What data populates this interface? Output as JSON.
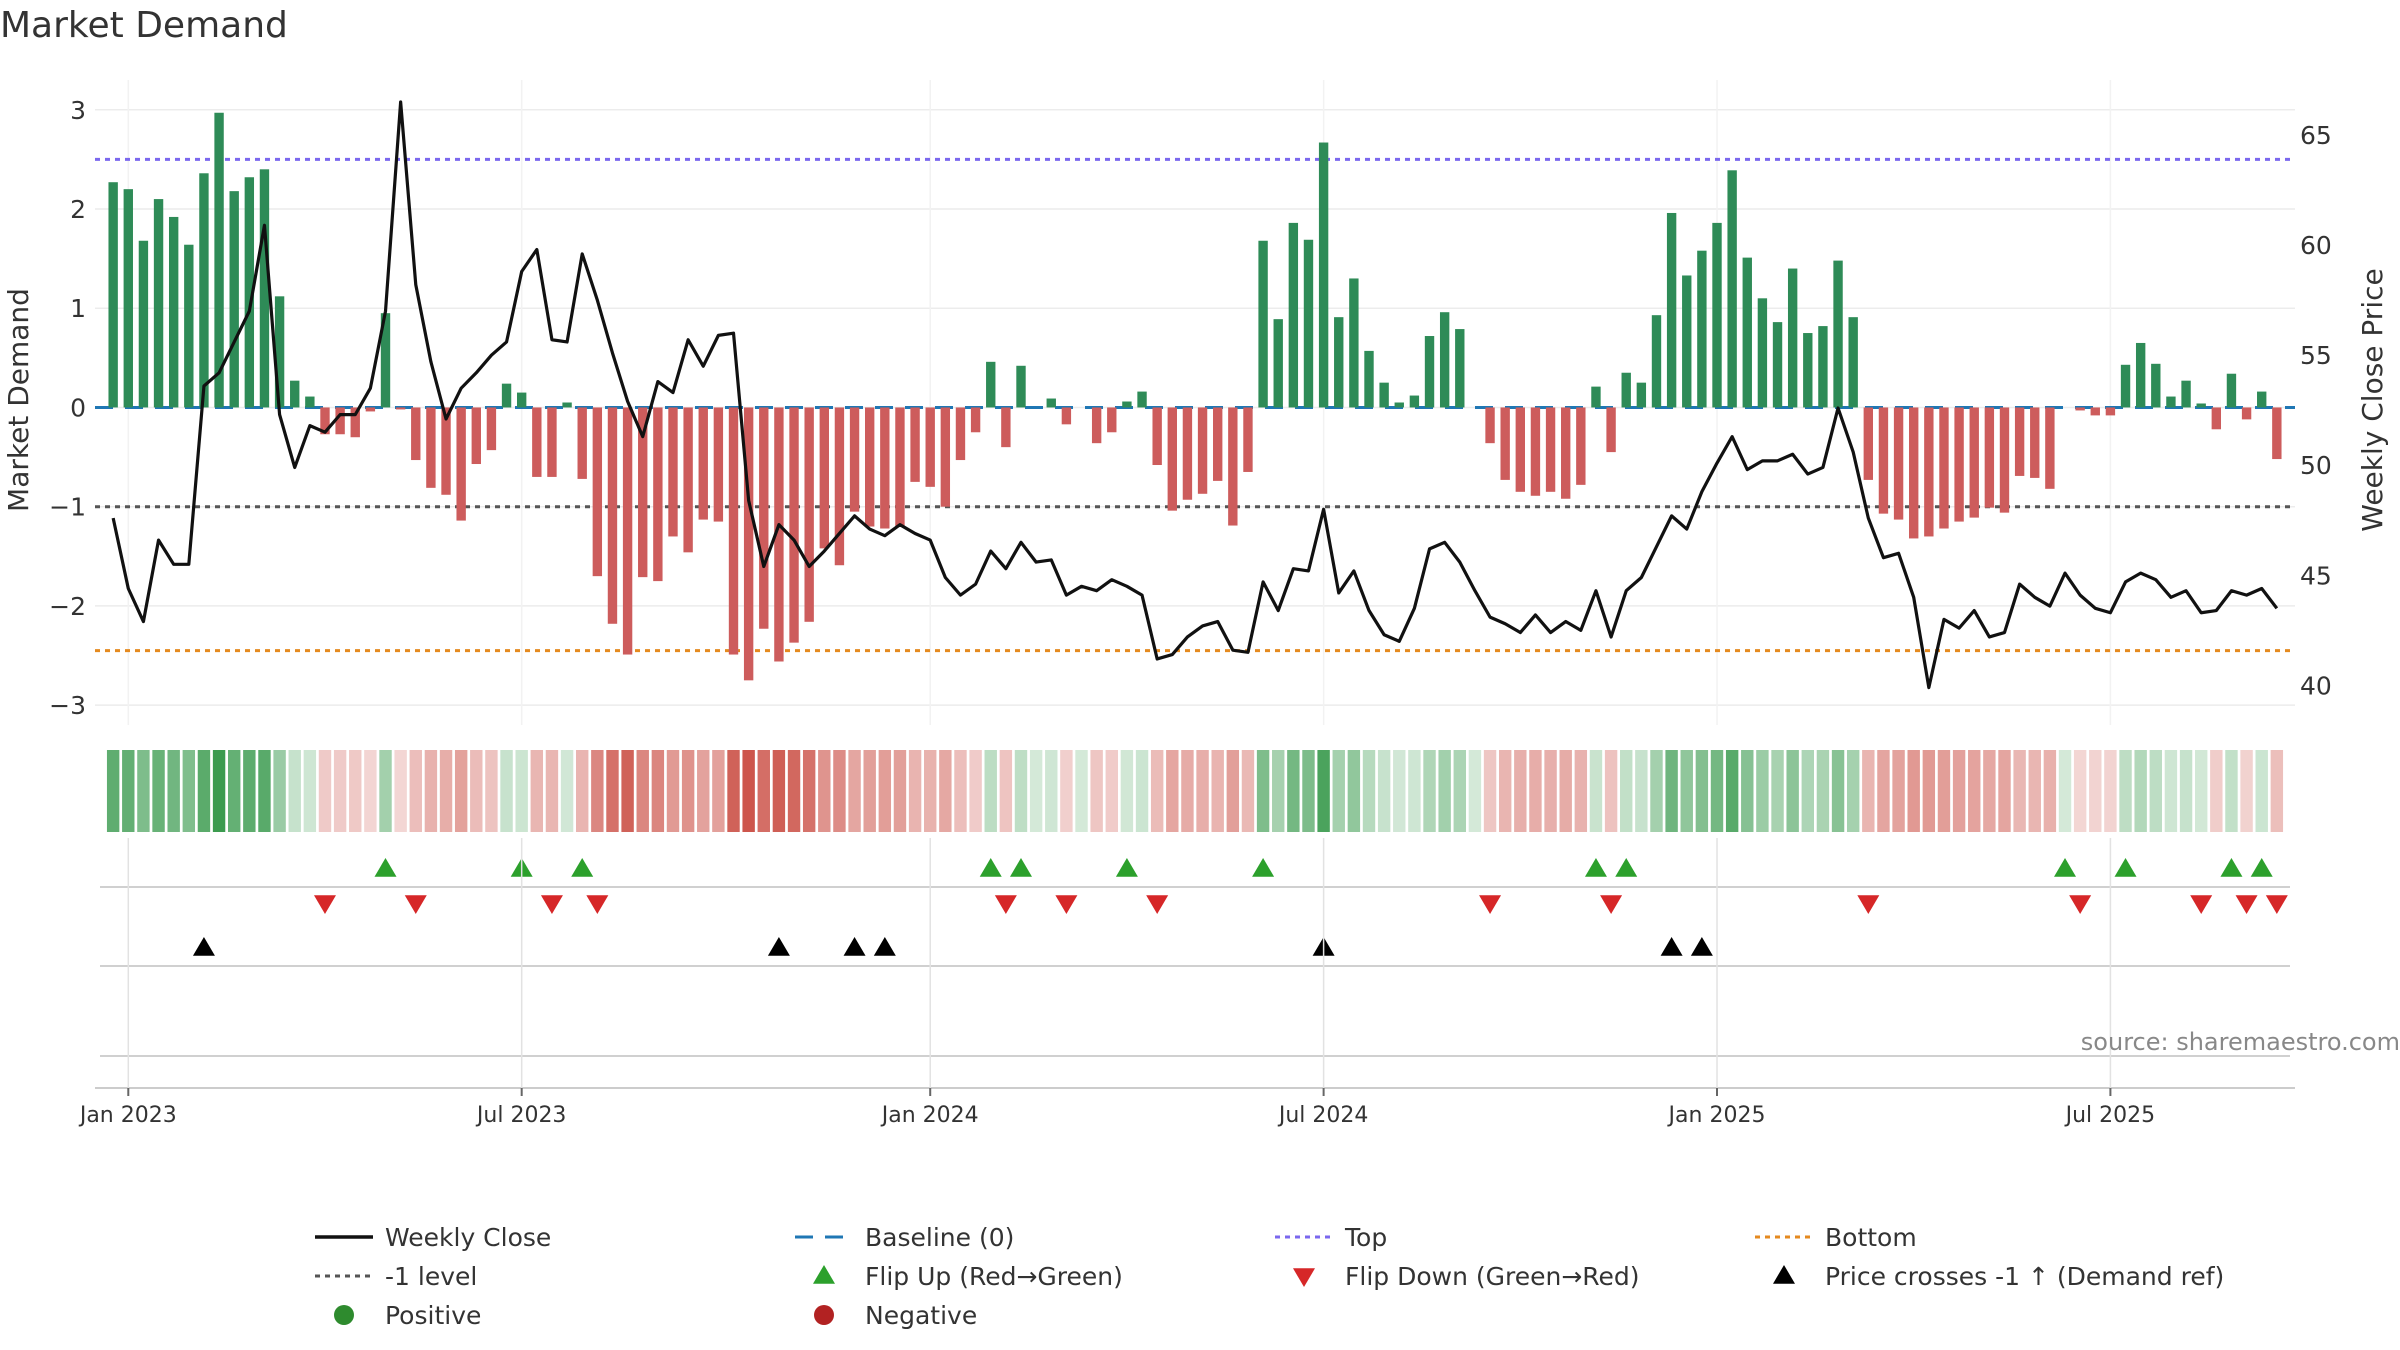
{
  "chart_data": {
    "type": "bar+line",
    "title": "Market Demand",
    "ylabel_left": "Market Demand",
    "ylabel_right": "Weekly Close Price",
    "ylim_left": [
      -3.2,
      3.3
    ],
    "ylim_right": [
      38.2,
      67.5
    ],
    "yticks_left": [
      {
        "v": 3,
        "label": "3"
      },
      {
        "v": 2,
        "label": "2"
      },
      {
        "v": 1,
        "label": "1"
      },
      {
        "v": 0,
        "label": "0"
      },
      {
        "v": -1,
        "label": "−1"
      },
      {
        "v": -2,
        "label": "−2"
      },
      {
        "v": -3,
        "label": "−3"
      }
    ],
    "yticks_right": [
      {
        "v": 65,
        "label": "65"
      },
      {
        "v": 60,
        "label": "60"
      },
      {
        "v": 55,
        "label": "55"
      },
      {
        "v": 50,
        "label": "50"
      },
      {
        "v": 45,
        "label": "45"
      },
      {
        "v": 40,
        "label": "40"
      }
    ],
    "x_start": "2022-12-30",
    "x_step_weeks": 1,
    "x_range_weeks": [
      -1.2,
      144.2
    ],
    "xticks": [
      {
        "week": 1,
        "label": "Jan 2023"
      },
      {
        "week": 27,
        "label": "Jul 2023"
      },
      {
        "week": 54,
        "label": "Jan 2024"
      },
      {
        "week": 80,
        "label": "Jul 2024"
      },
      {
        "week": 106,
        "label": "Jan 2025"
      },
      {
        "week": 132,
        "label": "Jul 2025"
      }
    ],
    "levels": {
      "baseline": 0,
      "top": 2.5,
      "bottom": -2.45,
      "minus_one": -1
    },
    "demand": [
      2.27,
      2.2,
      1.68,
      2.1,
      1.92,
      1.64,
      2.36,
      2.97,
      2.18,
      2.32,
      2.4,
      1.12,
      0.27,
      0.11,
      -0.27,
      -0.27,
      -0.3,
      -0.04,
      0.95,
      -0.02,
      -0.53,
      -0.81,
      -0.88,
      -1.14,
      -0.57,
      -0.43,
      0.24,
      0.15,
      -0.7,
      -0.7,
      0.05,
      -0.72,
      -1.7,
      -2.18,
      -2.49,
      -1.71,
      -1.75,
      -1.3,
      -1.46,
      -1.13,
      -1.15,
      -2.49,
      -2.75,
      -2.23,
      -2.56,
      -2.37,
      -2.16,
      -1.42,
      -1.59,
      -1.05,
      -1.2,
      -1.22,
      -1.2,
      -0.75,
      -0.8,
      -1.0,
      -0.53,
      -0.25,
      0.46,
      -0.4,
      0.42,
      0.0,
      0.09,
      -0.17,
      0.0,
      -0.36,
      -0.25,
      0.06,
      0.16,
      -0.58,
      -1.04,
      -0.93,
      -0.87,
      -0.74,
      -1.19,
      -0.65,
      1.68,
      0.89,
      1.86,
      1.69,
      2.67,
      0.91,
      1.3,
      0.57,
      0.25,
      0.05,
      0.12,
      0.72,
      0.96,
      0.79,
      0.0,
      -0.36,
      -0.73,
      -0.85,
      -0.89,
      -0.85,
      -0.92,
      -0.78,
      0.21,
      -0.45,
      0.35,
      0.25,
      0.93,
      1.96,
      1.33,
      1.58,
      1.86,
      2.39,
      1.51,
      1.1,
      0.86,
      1.4,
      0.75,
      0.82,
      1.48,
      0.91,
      -0.73,
      -1.07,
      -1.13,
      -1.32,
      -1.3,
      -1.22,
      -1.15,
      -1.11,
      -1.01,
      -1.06,
      -0.69,
      -0.71,
      -0.82,
      0.0,
      -0.03,
      -0.08,
      -0.08,
      0.43,
      0.65,
      0.44,
      0.11,
      0.27,
      0.04,
      -0.22,
      0.34,
      -0.12,
      0.16,
      -0.52
    ],
    "close": [
      47.6,
      44.4,
      42.9,
      46.6,
      45.5,
      45.5,
      53.6,
      54.2,
      55.6,
      57.0,
      60.9,
      52.3,
      49.9,
      51.8,
      51.5,
      52.3,
      52.3,
      53.5,
      57.0,
      66.5,
      58.2,
      54.7,
      52.1,
      53.5,
      54.2,
      55.0,
      55.6,
      58.8,
      59.8,
      55.7,
      55.6,
      59.6,
      57.5,
      55.1,
      52.9,
      51.3,
      53.8,
      53.3,
      55.7,
      54.5,
      55.9,
      56.0,
      48.4,
      45.4,
      47.3,
      46.6,
      45.4,
      46.1,
      46.9,
      47.7,
      47.1,
      46.8,
      47.3,
      46.9,
      46.6,
      44.9,
      44.1,
      44.6,
      46.1,
      45.3,
      46.5,
      45.6,
      45.7,
      44.1,
      44.5,
      44.3,
      44.8,
      44.5,
      44.1,
      41.2,
      41.4,
      42.2,
      42.7,
      42.9,
      41.6,
      41.5,
      44.7,
      43.4,
      45.3,
      45.2,
      48.0,
      44.2,
      45.2,
      43.4,
      42.3,
      42.0,
      43.5,
      46.2,
      46.5,
      45.6,
      44.3,
      43.1,
      42.8,
      42.4,
      43.2,
      42.4,
      42.9,
      42.5,
      44.3,
      42.2,
      44.3,
      44.9,
      46.3,
      47.7,
      47.1,
      48.8,
      50.1,
      51.3,
      49.8,
      50.2,
      50.2,
      50.5,
      49.6,
      49.9,
      52.6,
      50.6,
      47.6,
      45.8,
      46.0,
      44.0,
      39.9,
      43.0,
      42.6,
      43.4,
      42.2,
      42.4,
      44.6,
      44.0,
      43.6,
      45.1,
      44.1,
      43.5,
      43.3,
      44.7,
      45.1,
      44.8,
      44.0,
      44.3,
      43.3,
      43.4,
      44.3,
      44.1,
      44.4,
      43.5
    ],
    "flip_up_weeks": [
      18,
      27,
      31,
      58,
      60,
      67,
      76,
      98,
      100,
      129,
      133,
      140,
      142
    ],
    "flip_down_weeks": [
      14,
      20,
      29,
      32,
      59,
      63,
      69,
      91,
      99,
      116,
      130,
      138,
      141,
      143
    ],
    "price_cross_weeks": [
      6,
      44,
      49,
      51,
      80,
      103,
      105
    ],
    "colors": {
      "positive_bar": "#2e8b57",
      "negative_bar": "#cd5c5c",
      "close_line": "#111111",
      "baseline": "#1f77b4",
      "top": "#7b68ee",
      "bottom": "#e58a1f",
      "minus_one": "#555555",
      "flip_up": "#2ca02c",
      "flip_down": "#d62728",
      "price_cross": "#000000",
      "strip_positive": "#3a9a4e",
      "strip_negative": "#c94a40"
    },
    "legend": [
      {
        "label": "Weekly Close",
        "kind": "line",
        "color": "#111111"
      },
      {
        "label": "Baseline (0)",
        "kind": "dash",
        "color": "#1f77b4"
      },
      {
        "label": "Top",
        "kind": "dot",
        "color": "#7b68ee"
      },
      {
        "label": "Bottom",
        "kind": "dot",
        "color": "#e58a1f"
      },
      {
        "label": "-1 level",
        "kind": "dot",
        "color": "#555555"
      },
      {
        "label": "Flip Up (Red→Green)",
        "kind": "tri-up",
        "color": "#2ca02c"
      },
      {
        "label": "Flip Down (Green→Red)",
        "kind": "tri-down",
        "color": "#d62728"
      },
      {
        "label": "Price crosses -1 ↑ (Demand ref)",
        "kind": "tri-up",
        "color": "#000000"
      },
      {
        "label": "Positive",
        "kind": "circle",
        "color": "#2e8b2e"
      },
      {
        "label": "Negative",
        "kind": "circle",
        "color": "#b22222"
      }
    ],
    "source": "source: sharemaestro.com"
  }
}
